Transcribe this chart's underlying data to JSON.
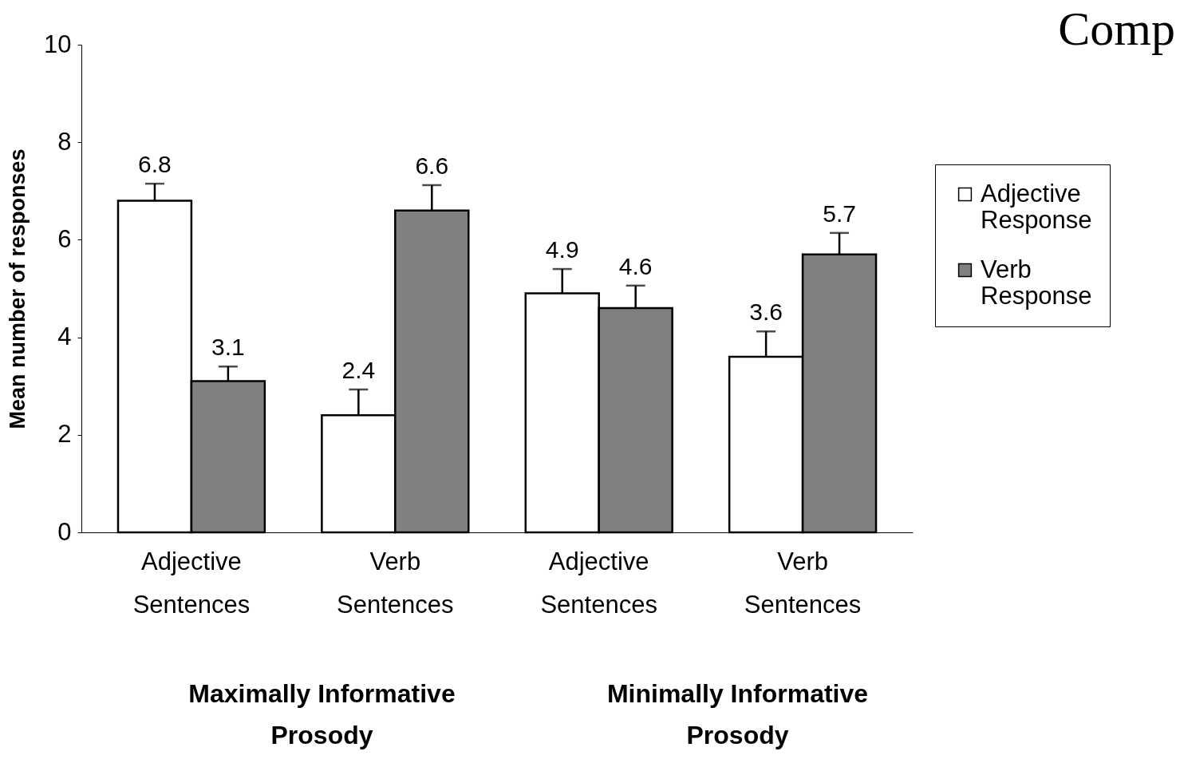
{
  "chart_data": {
    "type": "bar",
    "title": "Comp",
    "ylabel": "Mean number of responses",
    "categories": [
      "Adjective Sentences",
      "Verb Sentences",
      "Adjective Sentences",
      "Verb Sentences"
    ],
    "series": [
      {
        "name": "Adjective Response",
        "color": "#ffffff",
        "values": [
          6.8,
          2.4,
          4.9,
          3.6
        ],
        "errors": [
          [
            6.8,
            7.15
          ],
          [
            2.4,
            2.93
          ],
          [
            4.9,
            5.4
          ],
          [
            3.6,
            4.12
          ]
        ]
      },
      {
        "name": "Verb Response",
        "color": "#808080",
        "values": [
          3.1,
          6.6,
          4.6,
          5.7
        ],
        "errors": [
          [
            3.1,
            3.4
          ],
          [
            6.6,
            7.12
          ],
          [
            4.6,
            5.06
          ],
          [
            5.7,
            6.14
          ]
        ]
      }
    ],
    "ylim": [
      0,
      10
    ],
    "yticks": [
      0,
      2,
      4,
      6,
      8,
      10
    ],
    "grid": false,
    "legend": "right",
    "data_labels": true,
    "annotations": [
      "Maximally Informative Prosody",
      "Minimally Informative Prosody"
    ]
  }
}
